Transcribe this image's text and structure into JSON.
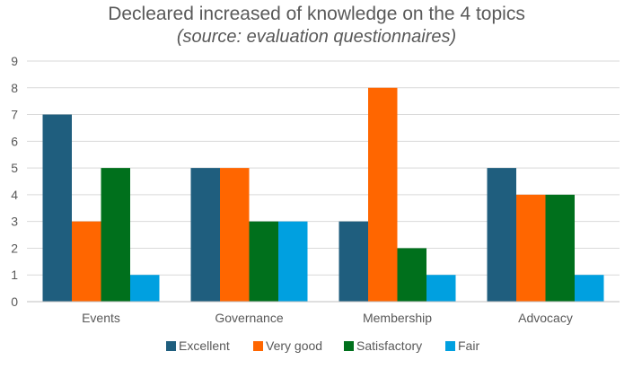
{
  "chart_data": {
    "type": "bar",
    "title": "Decleared increased of knowledge on the 4 topics",
    "subtitle": "(source: evaluation questionnaires)",
    "categories": [
      "Events",
      "Governance",
      "Membership",
      "Advocacy"
    ],
    "series": [
      {
        "name": "Excellent",
        "color": "#1F5E7E",
        "values": [
          7,
          5,
          3,
          5
        ]
      },
      {
        "name": "Very good",
        "color": "#FF6600",
        "values": [
          3,
          5,
          8,
          4
        ]
      },
      {
        "name": "Satisfactory",
        "color": "#00701C",
        "values": [
          5,
          3,
          2,
          4
        ]
      },
      {
        "name": "Fair",
        "color": "#00A0E0",
        "values": [
          1,
          3,
          1,
          1
        ]
      }
    ],
    "ylim": [
      0,
      9
    ],
    "yticks": [
      0,
      1,
      2,
      3,
      4,
      5,
      6,
      7,
      8,
      9
    ],
    "grid": true,
    "legend": "bottom"
  }
}
